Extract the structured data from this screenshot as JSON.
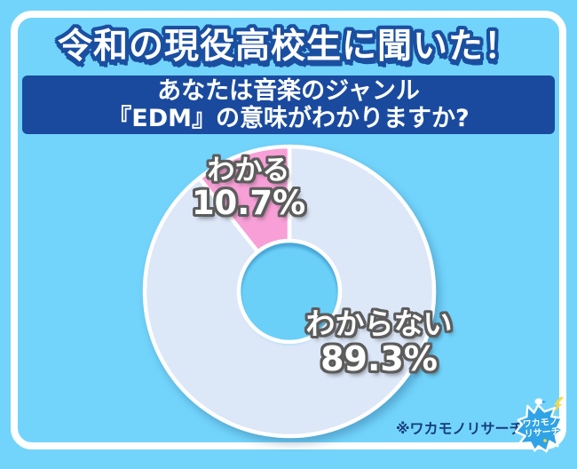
{
  "page": {
    "background_color": "#72D4FB",
    "frame_color": "#FFFFFF"
  },
  "title": "令和の現役高校生に聞いた！",
  "question": {
    "line1": "あなたは音楽のジャンル",
    "line2": "『EDM』の意味がわかりますか?",
    "background_color": "#1A4A9E"
  },
  "chart_data": {
    "type": "pie",
    "subtype": "donut",
    "title": "あなたは音楽のジャンル『EDM』の意味がわかりますか?",
    "categories": [
      "わからない",
      "わかる"
    ],
    "values": [
      89.3,
      10.7
    ],
    "unit": "%",
    "colors": [
      "#DCE7F8",
      "#F79FD6"
    ],
    "start_position": "12-oclock-clockwise",
    "labels": [
      {
        "name": "わかる",
        "value": "10.7%"
      },
      {
        "name": "わからない",
        "value": "89.3%"
      }
    ]
  },
  "footer": {
    "source_note": "※ワカモノリサーチ調べ"
  },
  "badge": {
    "line1": "ワカモノ",
    "line2": "リサーチ",
    "splash_color": "#2FA3E6",
    "accent_color": "#FFD93B"
  }
}
